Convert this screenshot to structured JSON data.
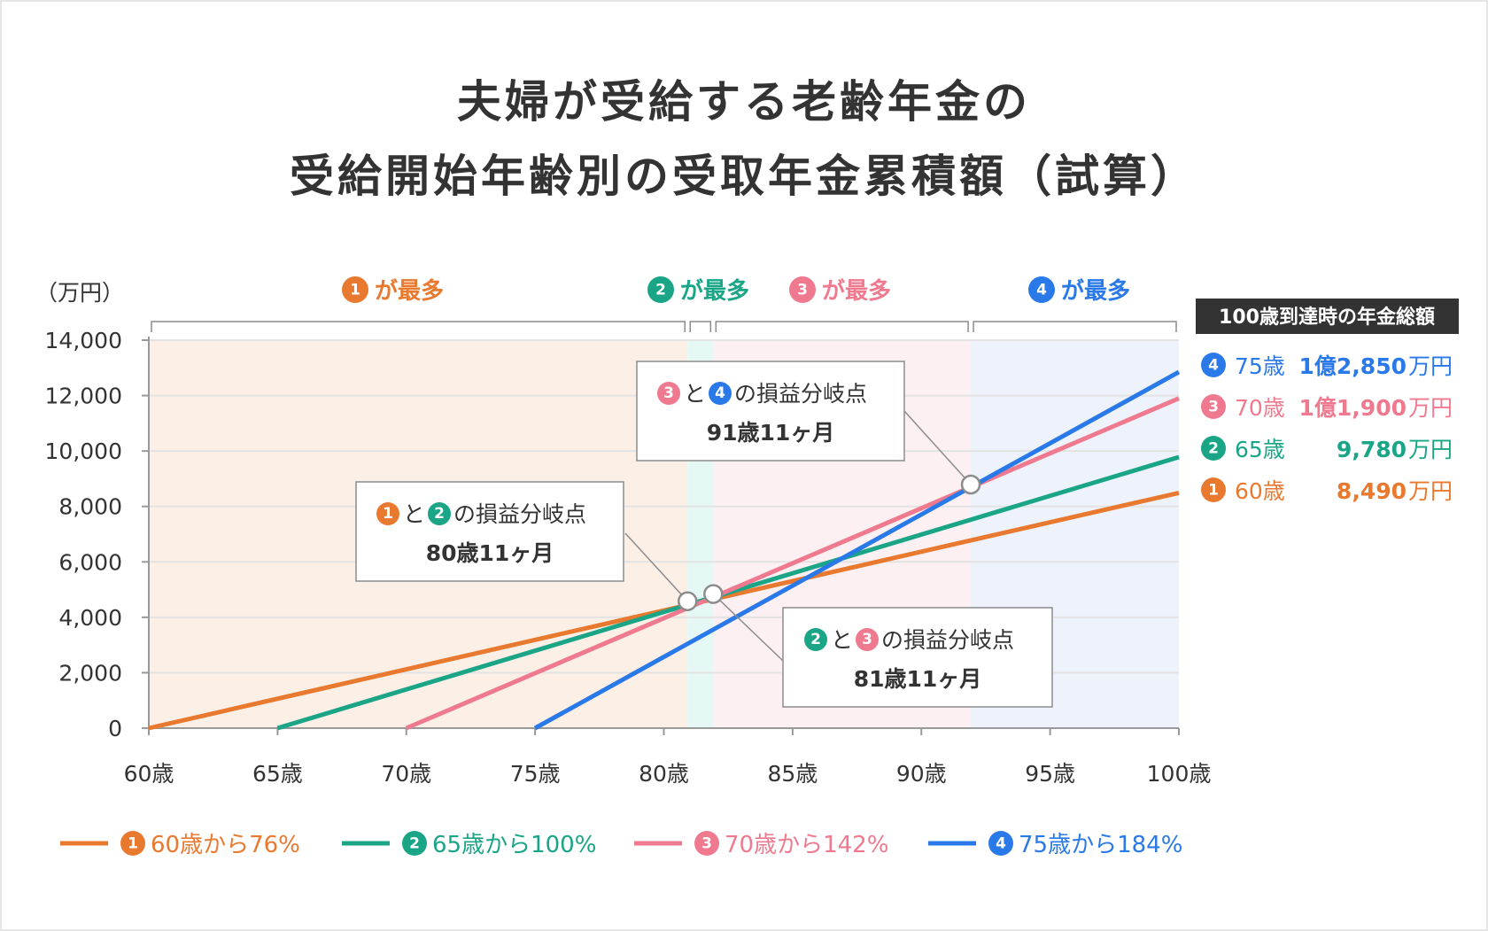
{
  "title_lines": [
    "夫婦が受給する老齢年金の",
    "受給開始年齢別の受取年金累積額（試算）"
  ],
  "colors": {
    "s1": "#e8792f",
    "s2": "#1aa587",
    "s3": "#ef7a8f",
    "s4": "#2a79e8",
    "zone1": "#fcefe6",
    "zone2": "#e5f8f5",
    "zone3": "#fdf0f2",
    "zone4": "#edf2fb"
  },
  "chart_data": {
    "type": "line",
    "x": [
      60,
      65,
      70,
      75,
      80,
      85,
      90,
      95,
      100
    ],
    "x_tick_labels": [
      "60歳",
      "65歳",
      "70歳",
      "75歳",
      "80歳",
      "85歳",
      "90歳",
      "95歳",
      "100歳"
    ],
    "y_tick_labels": [
      "0",
      "2,000",
      "4,000",
      "6,000",
      "8,000",
      "10,000",
      "12,000",
      "14,000"
    ],
    "ylabel": "（万円）",
    "xlim": [
      60,
      100
    ],
    "ylim": [
      0,
      14000
    ],
    "grid": true,
    "series": [
      {
        "num": "1",
        "name": "60歳から76%",
        "color_key": "s1",
        "start_age": 60,
        "value_at_100": 8490
      },
      {
        "num": "2",
        "name": "65歳から100%",
        "color_key": "s2",
        "start_age": 65,
        "value_at_100": 9780
      },
      {
        "num": "3",
        "name": "70歳から142%",
        "color_key": "s3",
        "start_age": 70,
        "value_at_100": 11900
      },
      {
        "num": "4",
        "name": "75歳から184%",
        "color_key": "s4",
        "start_age": 75,
        "value_at_100": 12850
      }
    ],
    "zones": [
      {
        "num": "1",
        "label": "が最多",
        "color_key": "s1",
        "fill_key": "zone1",
        "from": 60,
        "to": 80.92
      },
      {
        "num": "2",
        "label": "が最多",
        "color_key": "s2",
        "fill_key": "zone2",
        "from": 80.92,
        "to": 81.92
      },
      {
        "num": "3",
        "label": "が最多",
        "color_key": "s3",
        "fill_key": "zone3",
        "from": 81.92,
        "to": 91.92
      },
      {
        "num": "4",
        "label": "が最多",
        "color_key": "s4",
        "fill_key": "zone4",
        "from": 91.92,
        "to": 100
      }
    ],
    "breakeven": [
      {
        "a": "1",
        "b": "2",
        "a_key": "s1",
        "b_key": "s2",
        "conj": "と",
        "text": "の損益分岐点",
        "age_label": "80歳11ヶ月",
        "age": 80.92,
        "value": 4580
      },
      {
        "a": "2",
        "b": "3",
        "a_key": "s2",
        "b_key": "s3",
        "conj": "と",
        "text": "の損益分岐点",
        "age_label": "81歳11ヶ月",
        "age": 81.92,
        "value": 4840
      },
      {
        "a": "3",
        "b": "4",
        "a_key": "s3",
        "b_key": "s4",
        "conj": "と",
        "text": "の損益分岐点",
        "age_label": "91歳11ヶ月",
        "age": 91.92,
        "value": 8790
      }
    ],
    "totals": {
      "title": "100歳到達時の年金総額",
      "rows": [
        {
          "num": "4",
          "color_key": "s4",
          "age": "75歳",
          "amount": "1億2,850",
          "unit": "万円"
        },
        {
          "num": "3",
          "color_key": "s3",
          "age": "70歳",
          "amount": "1億1,900",
          "unit": "万円"
        },
        {
          "num": "2",
          "color_key": "s2",
          "age": "65歳",
          "amount": "9,780",
          "unit": "万円"
        },
        {
          "num": "1",
          "color_key": "s1",
          "age": "60歳",
          "amount": "8,490",
          "unit": "万円"
        }
      ]
    }
  }
}
